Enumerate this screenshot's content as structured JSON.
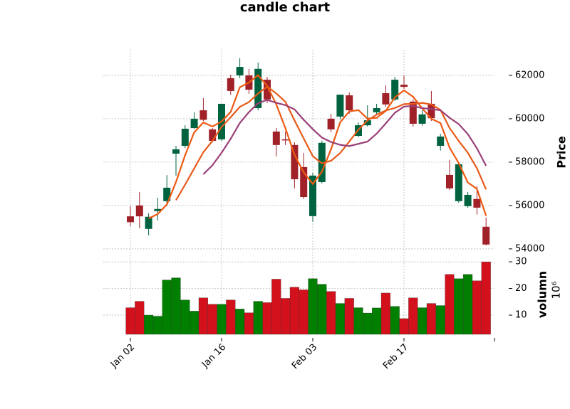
{
  "chart_data": {
    "type": "candlestick",
    "title": "candle chart",
    "ylabel": "Price",
    "volume_label": "volumn",
    "volume_offset_label": "10⁶",
    "categories": [
      "Jan 02",
      null,
      null,
      null,
      null,
      null,
      null,
      null,
      null,
      null,
      "Jan 16",
      null,
      null,
      null,
      null,
      null,
      null,
      null,
      null,
      null,
      "Feb 03",
      null,
      null,
      null,
      null,
      null,
      null,
      null,
      null,
      null,
      "Feb 17",
      null,
      null,
      null,
      null,
      null,
      null,
      null,
      null,
      null
    ],
    "open": [
      55500,
      56000,
      54920,
      55740,
      56200,
      58390,
      58750,
      59570,
      60390,
      59510,
      59050,
      61870,
      62000,
      62000,
      60490,
      61800,
      59410,
      59050,
      58790,
      57770,
      55510,
      57080,
      60000,
      60100,
      61080,
      59210,
      59700,
      60300,
      61180,
      60890,
      61570,
      60790,
      59770,
      60690,
      58750,
      57410,
      56200,
      55970,
      56300,
      55020
    ],
    "high": [
      55970,
      56620,
      55640,
      56360,
      57400,
      58750,
      59700,
      60300,
      60950,
      59570,
      60690,
      62030,
      62790,
      62300,
      62590,
      61930,
      59570,
      59410,
      58920,
      58430,
      57510,
      58990,
      60230,
      61110,
      61210,
      59830,
      60620,
      60690,
      61540,
      61930,
      62000,
      60890,
      60390,
      61280,
      59310,
      58100,
      57970,
      56620,
      56890,
      55440
    ],
    "low": [
      55050,
      54950,
      54620,
      55310,
      55970,
      57380,
      58650,
      59540,
      59900,
      58920,
      58980,
      61110,
      61870,
      61150,
      60390,
      60720,
      58260,
      58790,
      56790,
      56300,
      55250,
      57020,
      59380,
      59970,
      60230,
      59150,
      59640,
      60170,
      60540,
      60820,
      61380,
      59640,
      59680,
      59900,
      58530,
      56720,
      56130,
      55900,
      55580,
      54160
    ],
    "close": [
      55230,
      55500,
      55480,
      55840,
      56820,
      58590,
      59540,
      60000,
      59950,
      58980,
      60690,
      61280,
      62390,
      61340,
      62300,
      60890,
      58790,
      59000,
      57210,
      56390,
      57380,
      58890,
      59510,
      61110,
      60390,
      59700,
      59930,
      60490,
      60660,
      61800,
      61470,
      59770,
      60200,
      60030,
      59180,
      56790,
      57900,
      56490,
      55900,
      54200
    ],
    "volume": [
      12.8,
      15.2,
      10.0,
      9.6,
      23.2,
      24.0,
      15.7,
      11.5,
      16.5,
      14.1,
      14.1,
      15.7,
      12.3,
      10.9,
      15.2,
      14.7,
      23.5,
      16.3,
      20.5,
      19.5,
      23.7,
      21.6,
      18.9,
      14.4,
      16.3,
      12.8,
      10.8,
      12.7,
      18.3,
      13.3,
      8.7,
      16.5,
      12.8,
      14.4,
      13.6,
      25.3,
      23.7,
      25.3,
      22.9,
      30.0
    ],
    "mav": [
      3,
      6,
      9
    ],
    "mav_colors": [
      "#ee5a13",
      "#e85a1a",
      "#9a3f78"
    ],
    "up_color": "#006340",
    "down_color": "#a02128",
    "volume_up_color": "#007f00",
    "volume_down_color": "#d2111c",
    "ylim": [
      53930,
      63180
    ],
    "yticks": [
      54000,
      56000,
      58000,
      60000,
      62000
    ],
    "volume_ylim": [
      2.8,
      33.5
    ],
    "volume_ticks": [
      10,
      20,
      30
    ],
    "grid": true
  }
}
